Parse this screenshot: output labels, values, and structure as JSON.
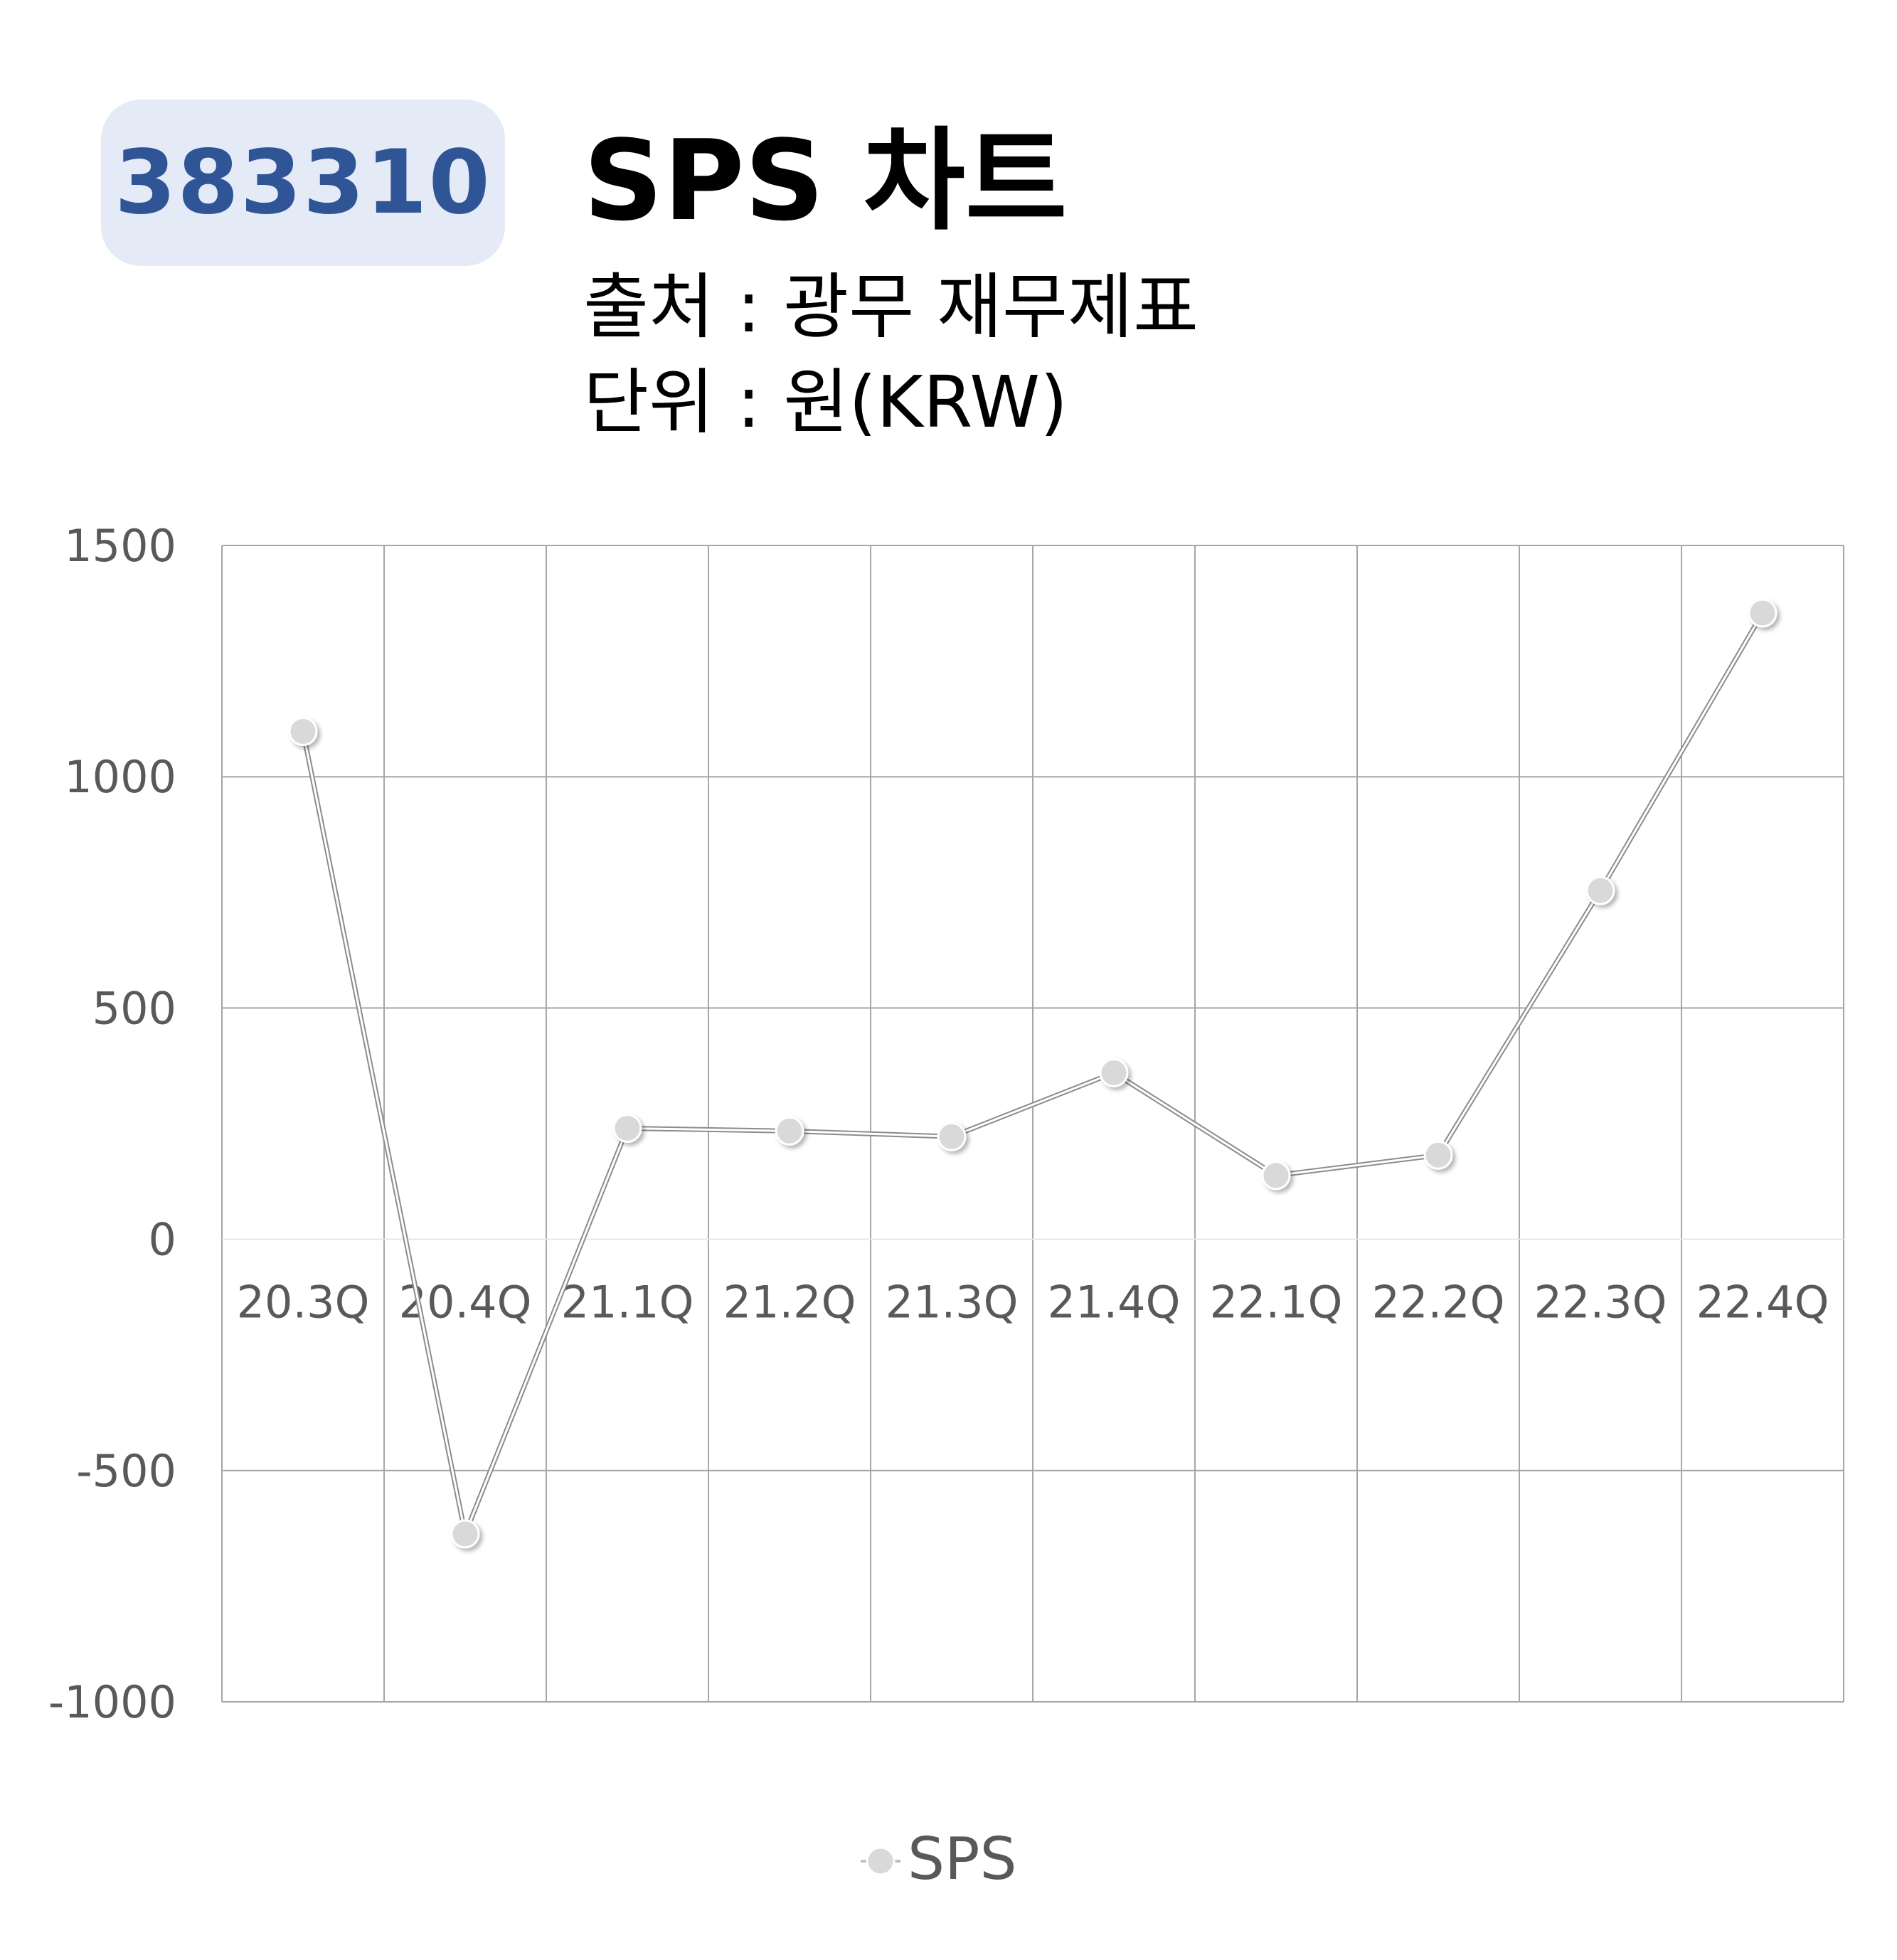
{
  "header": {
    "code": "383310",
    "title": "SPS 차트",
    "source": "출처 : 광무 재무제표",
    "unit": "단위 : 원(KRW)"
  },
  "chart_data": {
    "type": "line",
    "categories": [
      "20.3Q",
      "20.4Q",
      "21.1Q",
      "21.2Q",
      "21.3Q",
      "21.4Q",
      "22.1Q",
      "22.2Q",
      "22.3Q",
      "22.4Q"
    ],
    "series": [
      {
        "name": "SPS",
        "values": [
          1098,
          -637,
          240,
          234,
          222,
          360,
          138,
          182,
          754,
          1354
        ],
        "color": "#d9d9d9"
      }
    ],
    "y_ticks": [
      "1500",
      "1000",
      "500",
      "0",
      "-500",
      "-1000"
    ],
    "ylim": [
      -1000,
      1500
    ],
    "grid": true,
    "legend_position": "bottom"
  }
}
